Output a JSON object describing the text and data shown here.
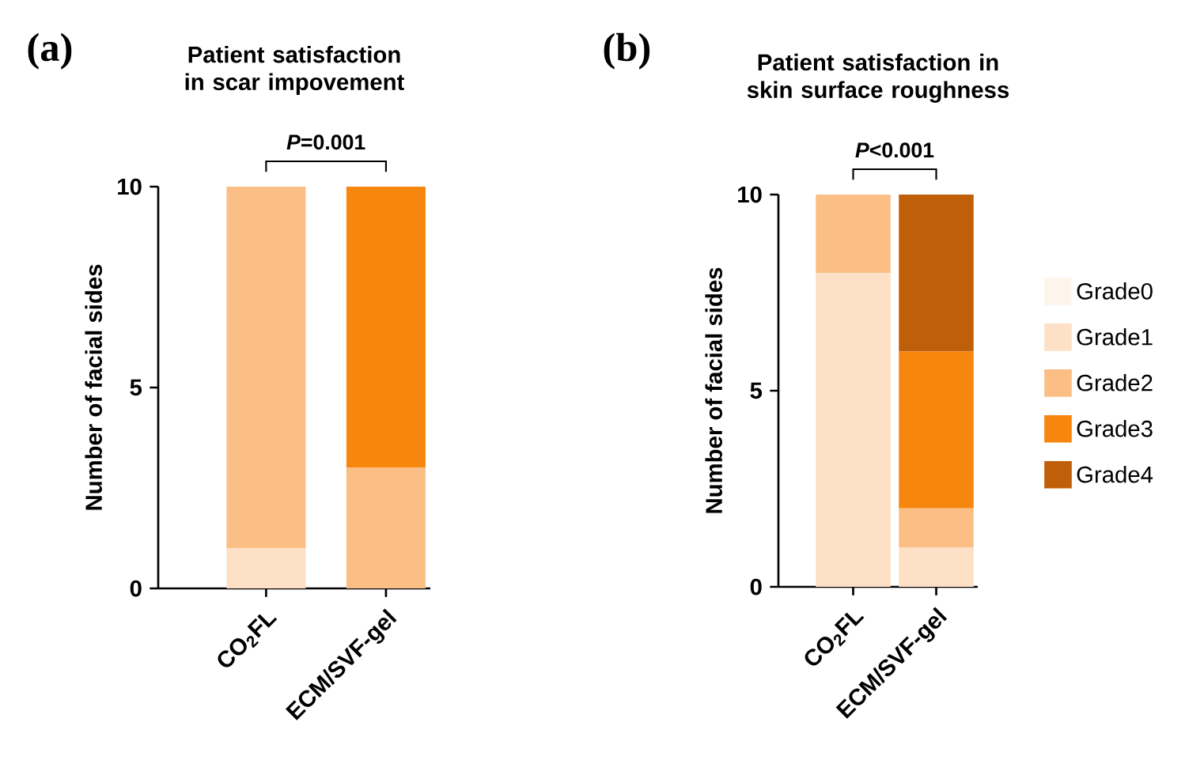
{
  "chart_data": [
    {
      "type": "bar",
      "stacked": true,
      "title": "Patient satisfaction in scar impovement",
      "ylabel": "Number of facial sides",
      "categories": [
        "CO$_{2}$FL",
        "ECM/SVF-gel"
      ],
      "ylim": [
        0,
        10
      ],
      "yticks": [
        0,
        5,
        10
      ],
      "legend": false,
      "annotations": [
        "(a)",
        "*P*=0.001"
      ],
      "series": [
        {
          "color": "#fde0c5",
          "values": [
            1,
            0
          ]
        },
        {
          "color": "#fbbf86",
          "values": [
            9,
            3
          ]
        },
        {
          "color": "#f7860f",
          "values": [
            0,
            7
          ]
        }
      ]
    },
    {
      "type": "bar",
      "stacked": true,
      "title": "Patient satisfaction in skin surface roughness",
      "ylabel": "Number of facial sides",
      "categories": [
        "CO$_{2}$FL",
        "ECM/SVF-gel"
      ],
      "ylim": [
        0,
        10
      ],
      "yticks": [
        0,
        5,
        10
      ],
      "legend": "right",
      "annotations": [
        "(b)",
        "*P*<0.001"
      ],
      "series": [
        {
          "name": "Grade0",
          "color": "#fdf5eb",
          "values": [
            0,
            0
          ]
        },
        {
          "name": "Grade1",
          "color": "#fde0c5",
          "values": [
            8,
            1
          ]
        },
        {
          "name": "Grade2",
          "color": "#fbbf86",
          "values": [
            2,
            1
          ]
        },
        {
          "name": "Grade3",
          "color": "#f7860f",
          "values": [
            0,
            4
          ]
        },
        {
          "name": "Grade4",
          "color": "#c05f0a",
          "values": [
            0,
            4
          ]
        }
      ]
    }
  ]
}
